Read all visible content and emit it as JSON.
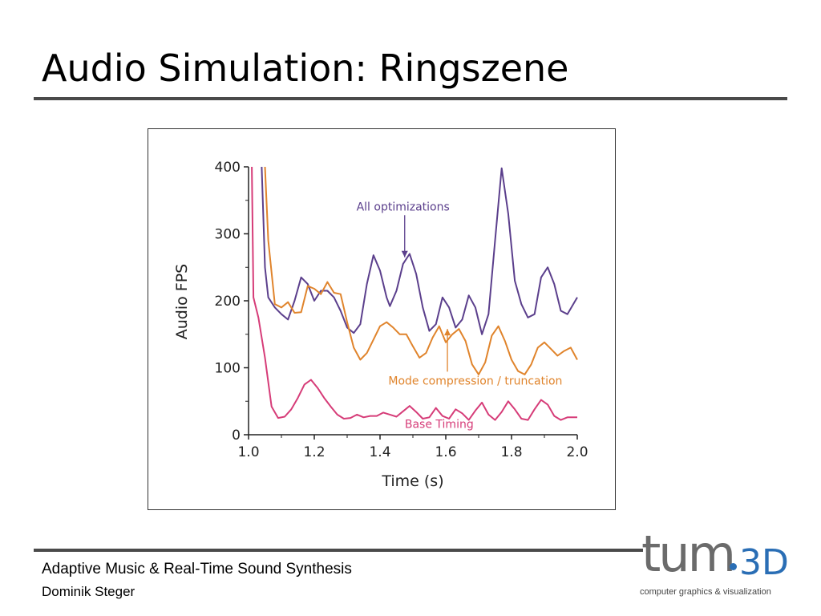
{
  "slide": {
    "title": "Audio Simulation: Ringszene"
  },
  "footer": {
    "line1": "Adaptive Music & Real-Time Sound Synthesis",
    "line2": "Dominik Steger"
  },
  "logo": {
    "main": "tum",
    "suffix": "3D",
    "subtitle": "computer graphics & visualization",
    "colors": {
      "gray": "#6b6b6b",
      "blue": "#2a6eb5"
    }
  },
  "chart_data": {
    "type": "line",
    "title": "",
    "xlabel": "Time (s)",
    "ylabel": "Audio FPS",
    "xlim": [
      1.0,
      2.0
    ],
    "ylim": [
      0,
      400
    ],
    "x_ticks": [
      "1.0",
      "1.2",
      "1.4",
      "1.6",
      "1.8",
      "2.0"
    ],
    "y_ticks": [
      "0",
      "100",
      "200",
      "300",
      "400"
    ],
    "grid": false,
    "legend": "inline annotations",
    "series": [
      {
        "name": "All optimizations",
        "color": "#5b3f8c",
        "points": [
          [
            1.04,
            400
          ],
          [
            1.05,
            250
          ],
          [
            1.06,
            205
          ],
          [
            1.08,
            190
          ],
          [
            1.1,
            180
          ],
          [
            1.12,
            172
          ],
          [
            1.14,
            200
          ],
          [
            1.16,
            235
          ],
          [
            1.18,
            225
          ],
          [
            1.2,
            200
          ],
          [
            1.22,
            215
          ],
          [
            1.24,
            215
          ],
          [
            1.26,
            205
          ],
          [
            1.28,
            185
          ],
          [
            1.3,
            160
          ],
          [
            1.32,
            152
          ],
          [
            1.34,
            165
          ],
          [
            1.36,
            225
          ],
          [
            1.38,
            268
          ],
          [
            1.4,
            245
          ],
          [
            1.42,
            205
          ],
          [
            1.43,
            192
          ],
          [
            1.45,
            215
          ],
          [
            1.47,
            255
          ],
          [
            1.49,
            270
          ],
          [
            1.51,
            240
          ],
          [
            1.53,
            190
          ],
          [
            1.55,
            155
          ],
          [
            1.57,
            165
          ],
          [
            1.59,
            205
          ],
          [
            1.61,
            190
          ],
          [
            1.63,
            160
          ],
          [
            1.65,
            172
          ],
          [
            1.67,
            208
          ],
          [
            1.69,
            190
          ],
          [
            1.71,
            150
          ],
          [
            1.73,
            180
          ],
          [
            1.75,
            290
          ],
          [
            1.77,
            398
          ],
          [
            1.79,
            330
          ],
          [
            1.81,
            230
          ],
          [
            1.83,
            195
          ],
          [
            1.85,
            175
          ],
          [
            1.87,
            180
          ],
          [
            1.89,
            235
          ],
          [
            1.91,
            250
          ],
          [
            1.93,
            225
          ],
          [
            1.95,
            185
          ],
          [
            1.97,
            180
          ],
          [
            2.0,
            205
          ]
        ]
      },
      {
        "name": "Mode compression / truncation",
        "color": "#e0842c",
        "points": [
          [
            1.05,
            400
          ],
          [
            1.06,
            290
          ],
          [
            1.08,
            195
          ],
          [
            1.1,
            190
          ],
          [
            1.12,
            198
          ],
          [
            1.14,
            182
          ],
          [
            1.16,
            183
          ],
          [
            1.18,
            222
          ],
          [
            1.2,
            218
          ],
          [
            1.22,
            210
          ],
          [
            1.24,
            228
          ],
          [
            1.26,
            212
          ],
          [
            1.28,
            210
          ],
          [
            1.3,
            168
          ],
          [
            1.32,
            130
          ],
          [
            1.34,
            112
          ],
          [
            1.36,
            122
          ],
          [
            1.38,
            142
          ],
          [
            1.4,
            162
          ],
          [
            1.42,
            168
          ],
          [
            1.44,
            160
          ],
          [
            1.46,
            150
          ],
          [
            1.48,
            150
          ],
          [
            1.5,
            132
          ],
          [
            1.52,
            115
          ],
          [
            1.54,
            122
          ],
          [
            1.56,
            145
          ],
          [
            1.58,
            162
          ],
          [
            1.6,
            138
          ],
          [
            1.62,
            150
          ],
          [
            1.64,
            158
          ],
          [
            1.66,
            140
          ],
          [
            1.68,
            105
          ],
          [
            1.7,
            90
          ],
          [
            1.72,
            108
          ],
          [
            1.74,
            148
          ],
          [
            1.76,
            162
          ],
          [
            1.78,
            140
          ],
          [
            1.8,
            112
          ],
          [
            1.82,
            95
          ],
          [
            1.84,
            90
          ],
          [
            1.86,
            105
          ],
          [
            1.88,
            130
          ],
          [
            1.9,
            138
          ],
          [
            1.92,
            128
          ],
          [
            1.94,
            118
          ],
          [
            1.96,
            125
          ],
          [
            1.98,
            130
          ],
          [
            2.0,
            112
          ]
        ]
      },
      {
        "name": "Base Timing",
        "color": "#d63c78",
        "points": [
          [
            1.01,
            400
          ],
          [
            1.015,
            205
          ],
          [
            1.03,
            175
          ],
          [
            1.05,
            115
          ],
          [
            1.07,
            42
          ],
          [
            1.09,
            25
          ],
          [
            1.11,
            27
          ],
          [
            1.13,
            38
          ],
          [
            1.15,
            55
          ],
          [
            1.17,
            75
          ],
          [
            1.19,
            82
          ],
          [
            1.21,
            70
          ],
          [
            1.23,
            55
          ],
          [
            1.25,
            42
          ],
          [
            1.27,
            30
          ],
          [
            1.29,
            24
          ],
          [
            1.31,
            25
          ],
          [
            1.33,
            30
          ],
          [
            1.35,
            26
          ],
          [
            1.37,
            28
          ],
          [
            1.39,
            28
          ],
          [
            1.41,
            33
          ],
          [
            1.43,
            30
          ],
          [
            1.45,
            27
          ],
          [
            1.47,
            35
          ],
          [
            1.49,
            43
          ],
          [
            1.51,
            34
          ],
          [
            1.53,
            24
          ],
          [
            1.55,
            26
          ],
          [
            1.57,
            40
          ],
          [
            1.59,
            28
          ],
          [
            1.61,
            24
          ],
          [
            1.63,
            38
          ],
          [
            1.65,
            32
          ],
          [
            1.67,
            22
          ],
          [
            1.69,
            36
          ],
          [
            1.71,
            48
          ],
          [
            1.73,
            30
          ],
          [
            1.75,
            22
          ],
          [
            1.77,
            34
          ],
          [
            1.79,
            50
          ],
          [
            1.81,
            38
          ],
          [
            1.83,
            24
          ],
          [
            1.85,
            22
          ],
          [
            1.87,
            38
          ],
          [
            1.89,
            52
          ],
          [
            1.91,
            45
          ],
          [
            1.93,
            28
          ],
          [
            1.95,
            22
          ],
          [
            1.97,
            26
          ],
          [
            2.0,
            26
          ]
        ]
      }
    ],
    "annotations": [
      {
        "text": "All optimizations",
        "color": "#5b3f8c",
        "x": 1.47,
        "y": 335,
        "arrow_to": [
          1.475,
          265
        ]
      },
      {
        "text": "Mode compression / truncation",
        "color": "#e0842c",
        "x": 1.69,
        "y": 75,
        "arrow_to": [
          1.605,
          158
        ]
      },
      {
        "text": "Base Timing",
        "color": "#d63c78",
        "x": 1.58,
        "y": 10
      }
    ]
  }
}
